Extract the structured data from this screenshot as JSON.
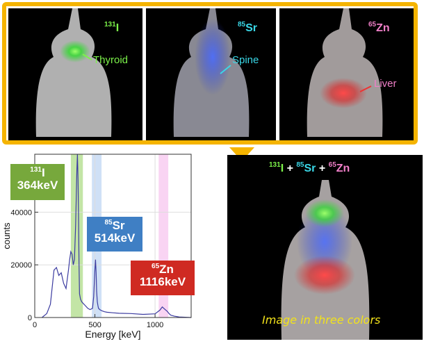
{
  "panels": [
    {
      "isotope_mass": "131",
      "isotope_symbol": "I",
      "isotope_color": "#7cf24a",
      "organ": "Thyroid",
      "organ_color": "#7cf24a"
    },
    {
      "isotope_mass": "85",
      "isotope_symbol": "Sr",
      "isotope_color": "#3ad8e8",
      "organ": "Spine",
      "organ_color": "#3ad8e8"
    },
    {
      "isotope_mass": "65",
      "isotope_symbol": "Zn",
      "isotope_color": "#f07fc8",
      "organ": "Liver",
      "organ_color": "#f07fc8"
    }
  ],
  "combined": {
    "title_parts": [
      {
        "mass": "131",
        "symbol": "I",
        "color": "#7cf24a"
      },
      {
        "plus": "+"
      },
      {
        "mass": "85",
        "symbol": "Sr",
        "color": "#3ad8e8"
      },
      {
        "plus": "+"
      },
      {
        "mass": "65",
        "symbol": "Zn",
        "color": "#f07fc8"
      }
    ],
    "caption": "Image in three colors"
  },
  "chart_data": {
    "type": "line",
    "xlabel": "Energy [keV]",
    "ylabel": "counts",
    "xlim": [
      0,
      1300
    ],
    "ylim": [
      0,
      62000
    ],
    "x_ticks": [
      0,
      500,
      1000
    ],
    "y_ticks": [
      0,
      20000,
      40000
    ],
    "line_color": "#3b3ba0",
    "x": [
      60,
      100,
      130,
      160,
      180,
      200,
      220,
      240,
      260,
      280,
      290,
      300,
      310,
      320,
      330,
      340,
      350,
      355,
      360,
      364,
      368,
      372,
      380,
      390,
      400,
      420,
      440,
      460,
      480,
      490,
      500,
      505,
      510,
      514,
      520,
      525,
      530,
      540,
      560,
      580,
      600,
      650,
      700,
      800,
      900,
      1000,
      1040,
      1060,
      1080,
      1100,
      1116,
      1130,
      1160,
      1200,
      1300
    ],
    "y": [
      0,
      1500,
      5000,
      18000,
      19000,
      16000,
      17000,
      13000,
      11000,
      18000,
      22000,
      25000,
      24000,
      20000,
      22000,
      35000,
      56000,
      62000,
      52000,
      38000,
      20000,
      9000,
      7000,
      6000,
      5500,
      4500,
      3500,
      3000,
      3500,
      8000,
      18000,
      22000,
      17000,
      10000,
      6000,
      4500,
      3500,
      3000,
      2500,
      2200,
      2000,
      1800,
      1600,
      1500,
      1200,
      1400,
      2800,
      4000,
      3200,
      2400,
      1500,
      900,
      500,
      200,
      0
    ],
    "bands": [
      {
        "label_mass": "131",
        "label_symbol": "I",
        "energy": "364keV",
        "from": 300,
        "to": 400,
        "band_color": "#b8e096",
        "badge_color": "#77a83c"
      },
      {
        "label_mass": "85",
        "label_symbol": "Sr",
        "energy": "514keV",
        "from": 475,
        "to": 555,
        "band_color": "#c7daf5",
        "badge_color": "#3f7fc4"
      },
      {
        "label_mass": "65",
        "label_symbol": "Zn",
        "energy": "1116keV",
        "from": 1030,
        "to": 1110,
        "band_color": "#f8cdf1",
        "badge_color": "#cf2a22"
      }
    ]
  }
}
